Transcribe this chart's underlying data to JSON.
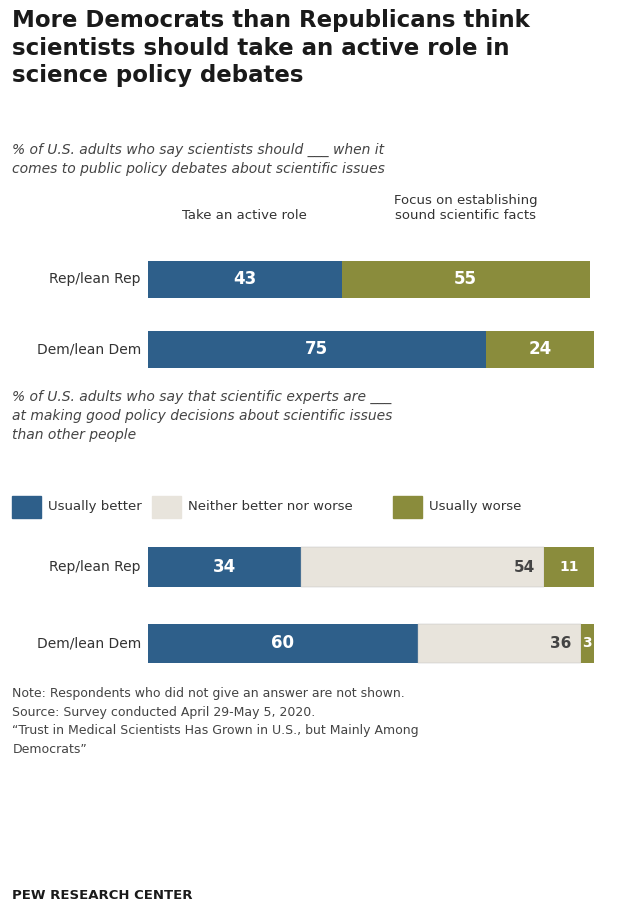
{
  "title": "More Democrats than Republicans think\nscientists should take an active role in\nscience policy debates",
  "subtitle1": "% of U.S. adults who say scientists should ___ when it\ncomes to public policy debates about scientific issues",
  "subtitle2": "% of U.S. adults who say that scientific experts are ___\nat making good policy decisions about scientific issues\nthan other people",
  "footer_note": "Note: Respondents who did not give an answer are not shown.\nSource: Survey conducted April 29-May 5, 2020.\n“Trust in Medical Scientists Has Grown in U.S., but Mainly Among\nDemocrats”",
  "footer_bold": "PEW RESEARCH CENTER",
  "chart1": {
    "categories": [
      "Rep/lean Rep",
      "Dem/lean Dem"
    ],
    "active_role": [
      43,
      75
    ],
    "focus_facts": [
      55,
      24
    ],
    "color_active": "#2E5F8A",
    "color_facts": "#8A8C3C",
    "col_header1": "Take an active role",
    "col_header2": "Focus on establishing\nsound scientific facts"
  },
  "chart2": {
    "categories": [
      "Rep/lean Rep",
      "Dem/lean Dem"
    ],
    "usually_better": [
      34,
      60
    ],
    "neither": [
      54,
      36
    ],
    "usually_worse": [
      11,
      3
    ],
    "color_better": "#2E5F8A",
    "color_neither": "#E8E4DC",
    "color_worse": "#8A8C3C",
    "legend_labels": [
      "Usually better",
      "Neither better nor worse",
      "Usually worse"
    ]
  },
  "background_color": "#FFFFFF",
  "bar_height": 0.52
}
